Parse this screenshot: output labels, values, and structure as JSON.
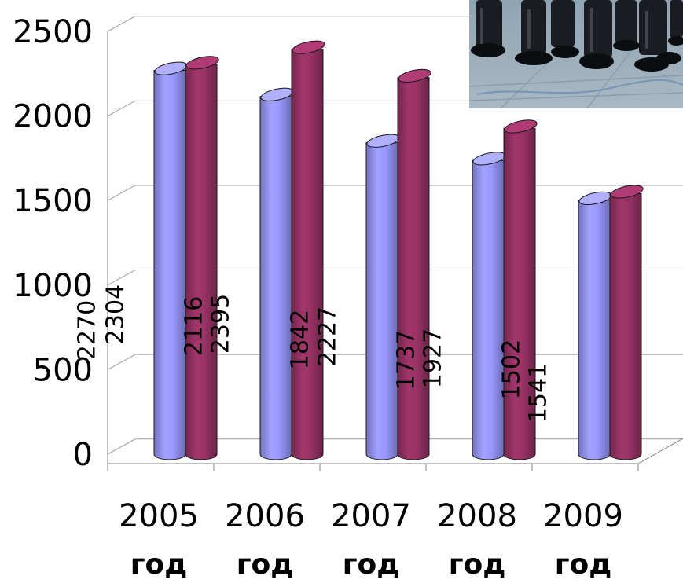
{
  "chart_data": {
    "type": "bar",
    "categories": [
      "2005 год",
      "2006 год",
      "2007 год",
      "2008 год",
      "2009 год"
    ],
    "category_lines": [
      [
        "2005",
        "год"
      ],
      [
        "2006",
        "год"
      ],
      [
        "2007",
        "год"
      ],
      [
        "2008",
        "год"
      ],
      [
        "2009",
        "год"
      ]
    ],
    "series": [
      {
        "values": [
          2270,
          2116,
          1842,
          1737,
          1502
        ],
        "color": "#9999ff",
        "labels": [
          "2270",
          "2116",
          "1842",
          "1737",
          "1502"
        ]
      },
      {
        "values": [
          2304,
          2395,
          2227,
          1927,
          1541
        ],
        "color": "#993366",
        "labels": [
          "2304",
          "2395",
          "2227",
          "1927",
          "1541"
        ]
      }
    ],
    "yticks": [
      "0",
      "500",
      "1000",
      "1500",
      "2000",
      "2500"
    ],
    "ylim": [
      0,
      2500
    ],
    "grid": true,
    "legend": false,
    "style": "3d-cylinder"
  },
  "photo": {
    "icon": "photo-of-marching-boots"
  }
}
